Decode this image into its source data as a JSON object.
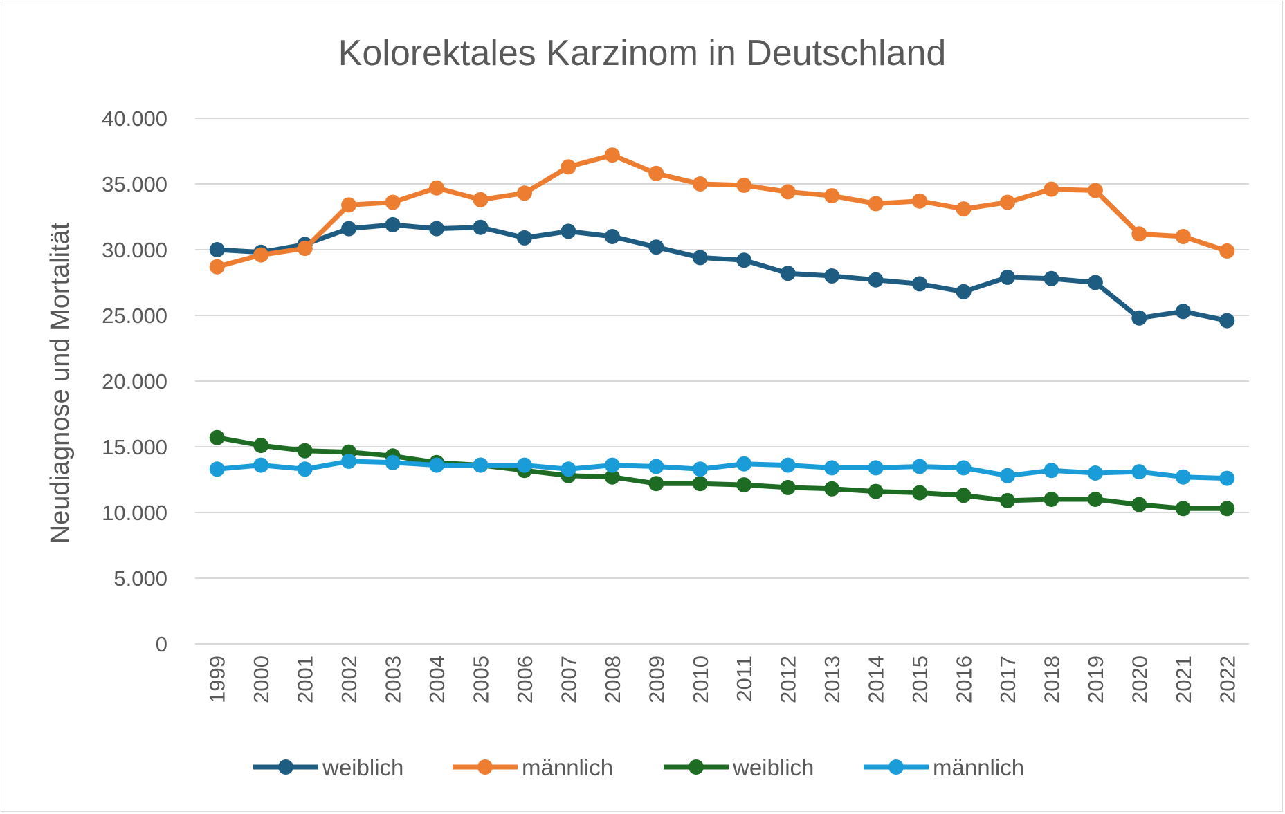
{
  "chart_data": {
    "type": "line",
    "title": "Kolorektales Karzinom in Deutschland",
    "xlabel": "",
    "ylabel": "Neudiagnose und Mortalität",
    "ylim": [
      0,
      40000
    ],
    "yticks": [
      0,
      5000,
      10000,
      15000,
      20000,
      25000,
      30000,
      35000,
      40000
    ],
    "ytick_labels": [
      "0",
      "5.000",
      "10.000",
      "15.000",
      "20.000",
      "25.000",
      "30.000",
      "35.000",
      "40.000"
    ],
    "categories": [
      "1999",
      "2000",
      "2001",
      "2002",
      "2003",
      "2004",
      "2005",
      "2006",
      "2007",
      "2008",
      "2009",
      "2010",
      "2011",
      "2012",
      "2013",
      "2014",
      "2015",
      "2016",
      "2017",
      "2018",
      "2019",
      "2020",
      "2021",
      "2022"
    ],
    "grid": true,
    "legend_position": "bottom",
    "series": [
      {
        "name": "weiblich",
        "color": "#1f5c82",
        "values": [
          30000,
          29800,
          30400,
          31600,
          31900,
          31600,
          31700,
          30900,
          31400,
          31000,
          30200,
          29400,
          29200,
          28200,
          28000,
          27700,
          27400,
          26800,
          27900,
          27800,
          27500,
          24800,
          25300,
          24600
        ]
      },
      {
        "name": "männlich",
        "color": "#ed7d31",
        "values": [
          28700,
          29600,
          30100,
          33400,
          33600,
          34700,
          33800,
          34300,
          36300,
          37200,
          35800,
          35000,
          34900,
          34400,
          34100,
          33500,
          33700,
          33100,
          33600,
          34600,
          34500,
          31200,
          31000,
          29900
        ]
      },
      {
        "name": "weiblich",
        "color": "#1e6b23",
        "values": [
          15700,
          15100,
          14700,
          14600,
          14300,
          13800,
          13600,
          13200,
          12800,
          12700,
          12200,
          12200,
          12100,
          11900,
          11800,
          11600,
          11500,
          11300,
          10900,
          11000,
          11000,
          10600,
          10300,
          10300
        ]
      },
      {
        "name": "männlich",
        "color": "#1a9cd8",
        "values": [
          13300,
          13600,
          13300,
          13900,
          13800,
          13600,
          13600,
          13600,
          13300,
          13600,
          13500,
          13300,
          13700,
          13600,
          13400,
          13400,
          13500,
          13400,
          12800,
          13200,
          13000,
          13100,
          12700,
          12600
        ]
      }
    ]
  }
}
